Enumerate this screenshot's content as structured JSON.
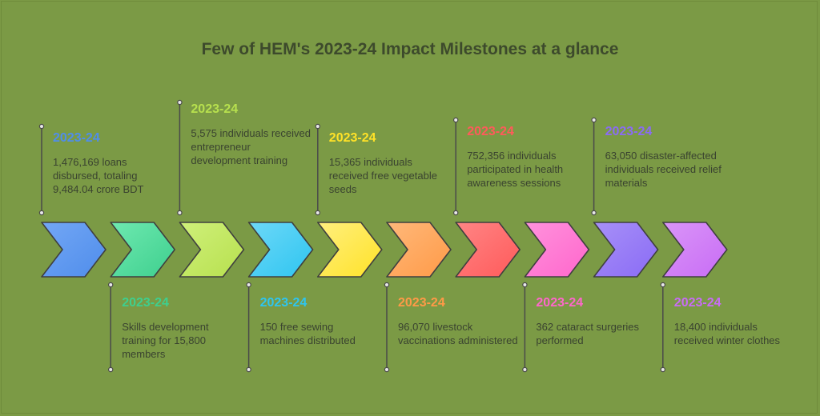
{
  "title": "Few of HEM's 2023-24 Impact Milestones at a glance",
  "milestones": [
    {
      "year": "2023-24",
      "text": "1,476,169 loans disbursed, totaling 9,484.04 crore BDT",
      "color": "#4F8DEB",
      "light": "#73A7F5",
      "position": "top"
    },
    {
      "year": "2023-24",
      "text": "Skills development training for 15,800 members",
      "color": "#3ECF8E",
      "light": "#6EE9B0",
      "position": "bottom"
    },
    {
      "year": "2023-24",
      "text": "5,575 individuals received entrepreneur development training",
      "color": "#B7E04E",
      "light": "#CFF07A",
      "position": "top"
    },
    {
      "year": "2023-24",
      "text": "150 free sewing machines distributed",
      "color": "#2EC5F0",
      "light": "#6DD8F8",
      "position": "bottom"
    },
    {
      "year": "2023-24",
      "text": "15,365 individuals received free vegetable seeds",
      "color": "#FFE227",
      "light": "#FFEF7E",
      "position": "top"
    },
    {
      "year": "2023-24",
      "text": "96,070 livestock vaccinations administered",
      "color": "#FF9A47",
      "light": "#FFB87A",
      "position": "bottom"
    },
    {
      "year": "2023-24",
      "text": "752,356 individuals participated in health awareness sessions",
      "color": "#FF5A5A",
      "light": "#FF8585",
      "position": "top"
    },
    {
      "year": "2023-24",
      "text": "362 cataract surgeries performed",
      "color": "#FF66CC",
      "light": "#FF92DC",
      "position": "bottom"
    },
    {
      "year": "2023-24",
      "text": "63,050 disaster-affected individuals received relief materials",
      "color": "#8A6BF5",
      "light": "#A790F8",
      "position": "top"
    },
    {
      "year": "2023-24",
      "text": "18,400 individuals received winter clothes",
      "color": "#C86CF5",
      "light": "#DA95F8",
      "position": "bottom"
    }
  ]
}
